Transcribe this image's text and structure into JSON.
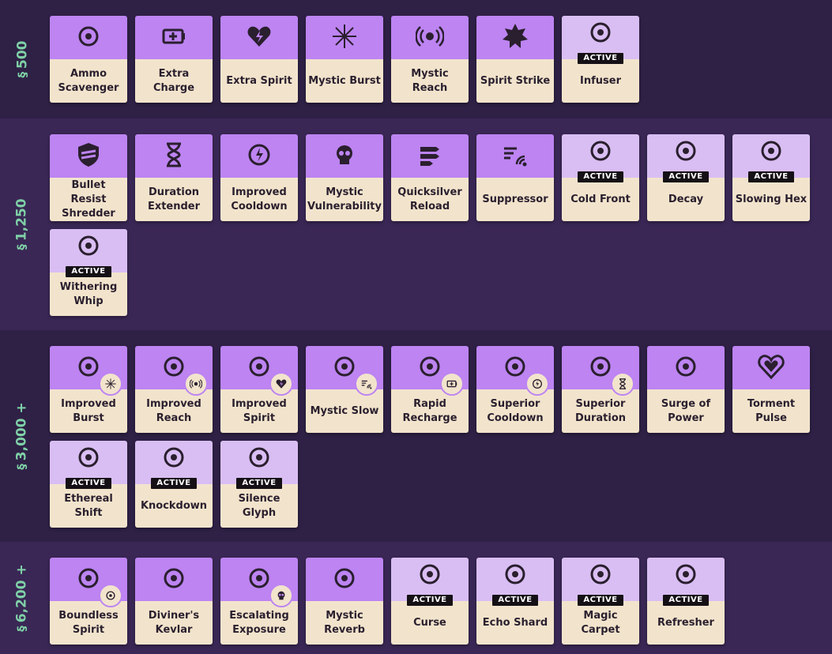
{
  "colors": {
    "accent_passive": "#bd84f2",
    "accent_active": "#d9bef3",
    "card_bottom": "#f2e4cc",
    "price": "#7fd1a7"
  },
  "tiers": [
    {
      "label": "500",
      "items": [
        {
          "name": "Ammo Scavenger",
          "icon": "ammo-scavenger-icon",
          "active": false
        },
        {
          "name": "Extra Charge",
          "icon": "battery-icon",
          "active": false
        },
        {
          "name": "Extra Spirit",
          "icon": "spirit-heart-icon",
          "active": false
        },
        {
          "name": "Mystic Burst",
          "icon": "burst-icon",
          "active": false
        },
        {
          "name": "Mystic Reach",
          "icon": "reach-icon",
          "active": false
        },
        {
          "name": "Spirit Strike",
          "icon": "fist-icon",
          "active": false
        },
        {
          "name": "Infuser",
          "icon": "infuser-icon",
          "active": true
        }
      ]
    },
    {
      "label": "1,250",
      "items": [
        {
          "name": "Bullet Resist Shredder",
          "icon": "shield-shred-icon",
          "active": false
        },
        {
          "name": "Duration Extender",
          "icon": "hourglass-icon",
          "active": false
        },
        {
          "name": "Improved Cooldown",
          "icon": "cooldown-icon",
          "active": false
        },
        {
          "name": "Mystic Vulnerability",
          "icon": "skull-icon",
          "active": false
        },
        {
          "name": "Quicksilver Reload",
          "icon": "bullets-icon",
          "active": false
        },
        {
          "name": "Suppressor",
          "icon": "suppressor-icon",
          "active": false
        },
        {
          "name": "Cold Front",
          "icon": "cold-front-icon",
          "active": true
        },
        {
          "name": "Decay",
          "icon": "decay-icon",
          "active": true
        },
        {
          "name": "Slowing Hex",
          "icon": "slowing-hex-icon",
          "active": true
        },
        {
          "name": "Withering Whip",
          "icon": "whip-icon",
          "active": true
        }
      ]
    },
    {
      "label": "3,000 +",
      "items": [
        {
          "name": "Improved Burst",
          "icon": "improved-burst-icon",
          "active": false,
          "mini": "burst-icon"
        },
        {
          "name": "Improved Reach",
          "icon": "improved-reach-icon",
          "active": false,
          "mini": "reach-icon"
        },
        {
          "name": "Improved Spirit",
          "icon": "improved-spirit-icon",
          "active": false,
          "mini": "spirit-heart-icon"
        },
        {
          "name": "Mystic Slow",
          "icon": "mystic-slow-icon",
          "active": false,
          "mini": "suppressor-icon"
        },
        {
          "name": "Rapid Recharge",
          "icon": "rapid-recharge-icon",
          "active": false,
          "mini": "battery-icon"
        },
        {
          "name": "Superior Cooldown",
          "icon": "superior-cooldown-icon",
          "active": false,
          "mini": "cooldown-icon"
        },
        {
          "name": "Superior Duration",
          "icon": "superior-duration-icon",
          "active": false,
          "mini": "hourglass-icon"
        },
        {
          "name": "Surge of Power",
          "icon": "surge-icon",
          "active": false
        },
        {
          "name": "Torment Pulse",
          "icon": "torment-heart-icon",
          "active": false
        },
        {
          "name": "Ethereal Shift",
          "icon": "ethereal-icon",
          "active": true
        },
        {
          "name": "Knockdown",
          "icon": "knockdown-icon",
          "active": true
        },
        {
          "name": "Silence Glyph",
          "icon": "silence-glyph-icon",
          "active": true
        }
      ]
    },
    {
      "label": "6,200 +",
      "items": [
        {
          "name": "Boundless Spirit",
          "icon": "boundless-spirit-icon",
          "active": false,
          "mini": "improved-spirit-icon"
        },
        {
          "name": "Diviner's Kevlar",
          "icon": "kevlar-icon",
          "active": false
        },
        {
          "name": "Escalating Exposure",
          "icon": "exposure-icon",
          "active": false,
          "mini": "skull-icon"
        },
        {
          "name": "Mystic Reverb",
          "icon": "reverb-icon",
          "active": false
        },
        {
          "name": "Curse",
          "icon": "curse-icon",
          "active": true
        },
        {
          "name": "Echo Shard",
          "icon": "echo-shard-icon",
          "active": true
        },
        {
          "name": "Magic Carpet",
          "icon": "carpet-icon",
          "active": true
        },
        {
          "name": "Refresher",
          "icon": "refresher-icon",
          "active": true
        }
      ]
    }
  ],
  "active_badge": "ACTIVE",
  "currency_icon": "souls-icon"
}
